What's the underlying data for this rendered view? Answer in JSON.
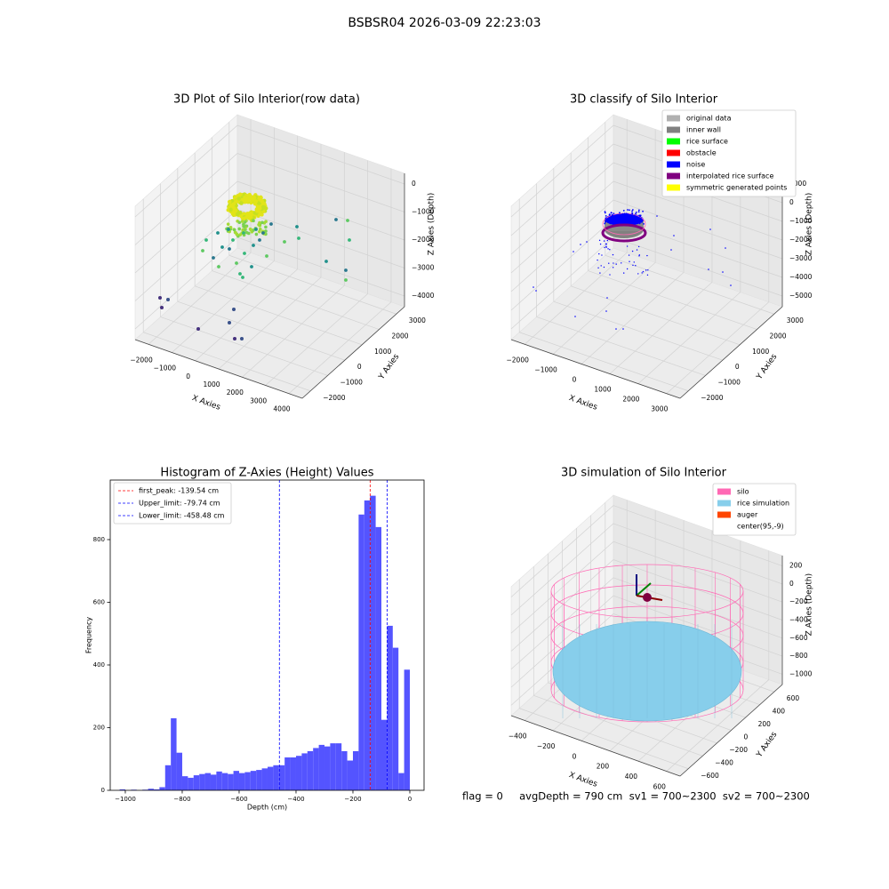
{
  "title": "BSBSR04 2026-03-09 22:23:03",
  "footer": "flag = 0     avgDepth = 790 cm  sv1 = 700~2300  sv2 = 700~2300",
  "chart_data": [
    {
      "type": "scatter3d",
      "title": "3D Plot of Silo Interior(row data)",
      "xlabel": "X Axies",
      "ylabel": "Y Axies",
      "zlabel": "Z Axies (Depth)",
      "xtick_labels": [
        "−2000",
        "−1000",
        "0",
        "1000",
        "2000",
        "3000",
        "4000"
      ],
      "ytick_labels": [
        "−2000",
        "−1000",
        "0",
        "1000",
        "2000",
        "3000"
      ],
      "ztick_labels": [
        "0",
        "−1000",
        "−2000",
        "−3000",
        "−4000"
      ]
    },
    {
      "type": "scatter3d",
      "title": "3D classify of Silo Interior",
      "xlabel": "X Axies",
      "ylabel": "Y Axies",
      "zlabel": "Z Axies (Depth)",
      "xtick_labels": [
        "−2000",
        "−1000",
        "0",
        "1000",
        "2000",
        "3000"
      ],
      "ytick_labels": [
        "−2000",
        "−1000",
        "0",
        "1000",
        "2000",
        "3000"
      ],
      "ztick_labels": [
        "1000",
        "0",
        "−1000",
        "−2000",
        "−3000",
        "−4000",
        "−5000"
      ],
      "legend": [
        {
          "name": "original data",
          "color": "#b0b0b0"
        },
        {
          "name": "inner wall",
          "color": "#808080"
        },
        {
          "name": "rice surface",
          "color": "#00ff00"
        },
        {
          "name": "obstacle",
          "color": "#ff0000"
        },
        {
          "name": "noise",
          "color": "#0000ff"
        },
        {
          "name": "interpolated rice surface",
          "color": "#800080"
        },
        {
          "name": "symmetric generated points",
          "color": "#ffff00"
        }
      ]
    },
    {
      "type": "histogram",
      "title": "Histogram of Z-Axies (Height) Values",
      "xlabel": "Depth (cm)",
      "ylabel": "Frequency",
      "color": "#5454ff",
      "bins": [
        -1020,
        -1000,
        -980,
        -960,
        -940,
        -920,
        -900,
        -880,
        -860,
        -840,
        -820,
        -800,
        -780,
        -760,
        -740,
        -720,
        -700,
        -680,
        -660,
        -640,
        -620,
        -600,
        -580,
        -560,
        -540,
        -520,
        -500,
        -480,
        -460,
        -440,
        -420,
        -400,
        -380,
        -360,
        -340,
        -320,
        -300,
        -280,
        -260,
        -240,
        -220,
        -200,
        -180,
        -160,
        -140,
        -120,
        -100,
        -80,
        -60,
        -40,
        -20,
        0
      ],
      "values": [
        3,
        0,
        2,
        0,
        2,
        5,
        3,
        10,
        80,
        230,
        120,
        45,
        40,
        48,
        52,
        55,
        50,
        60,
        55,
        52,
        62,
        55,
        58,
        62,
        65,
        70,
        75,
        80,
        80,
        105,
        105,
        110,
        118,
        125,
        135,
        145,
        140,
        150,
        150,
        125,
        95,
        125,
        880,
        925,
        940,
        840,
        225,
        525,
        455,
        55,
        385
      ],
      "xlim": [
        -1053,
        50
      ],
      "ylim": [
        0,
        990
      ],
      "xticks": [
        {
          "value": -1000,
          "label": "−1000"
        },
        {
          "value": -800,
          "label": "−800"
        },
        {
          "value": -600,
          "label": "−600"
        },
        {
          "value": -400,
          "label": "−400"
        },
        {
          "value": -200,
          "label": "−200"
        },
        0
      ],
      "yticks": [
        0,
        200,
        400,
        600,
        800
      ],
      "vlines": [
        {
          "label": "first_peak: -139.54 cm",
          "value": -139.54,
          "color": "#ff0000"
        },
        {
          "label": "Upper_limit: -79.74 cm",
          "value": -79.74,
          "color": "#0000ff"
        },
        {
          "label": "Lower_limit: -458.48 cm",
          "value": -458.48,
          "color": "#0000ff"
        }
      ],
      "legend": "upper left"
    },
    {
      "type": "scatter3d",
      "title": "3D simulation of Silo Interior",
      "xlabel": "X Axies",
      "ylabel": "Y Axies",
      "zlabel": "Z Axies (Depth)",
      "xtick_labels": [
        "−400",
        "−200",
        "0",
        "200",
        "400",
        "600"
      ],
      "ytick_labels": [
        "−600",
        "−400",
        "−200",
        "0",
        "200",
        "400",
        "600"
      ],
      "ztick_labels": [
        "200",
        "0",
        "−200",
        "−400",
        "−600",
        "−800",
        "−1000"
      ],
      "legend": [
        {
          "name": "silo",
          "color": "#ff69b4"
        },
        {
          "name": "rice simulation",
          "color": "#87ceeb"
        },
        {
          "name": "auger",
          "color": "#ff4500"
        },
        {
          "name": "center(95,-9)"
        }
      ]
    }
  ]
}
